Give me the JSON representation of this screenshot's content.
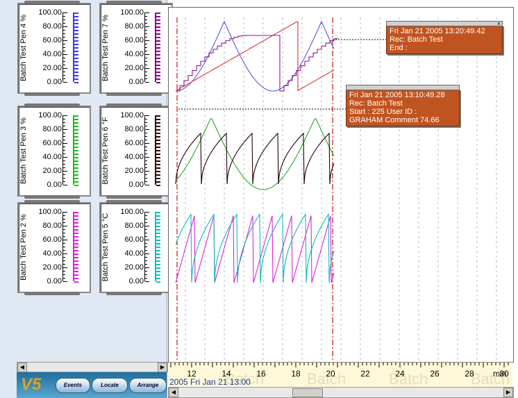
{
  "gauges": [
    {
      "label": "Batch Test Pen 4 %",
      "color": "#3a3af0",
      "ticks": [
        "100.00",
        "80.00",
        "60.00",
        "40.00",
        "20.00",
        "0.00"
      ]
    },
    {
      "label": "Batch Test Pen 7 %",
      "color": "#8b008b",
      "ticks": [
        "100.00",
        "80.00",
        "60.00",
        "40.00",
        "20.00",
        "0.00"
      ]
    },
    {
      "label": "Batch Test Pen 3 %",
      "color": "#22bb22",
      "ticks": [
        "100.00",
        "80.00",
        "60.00",
        "40.00",
        "20.00",
        "0.00"
      ]
    },
    {
      "label": "Batch Test Pen 6 °F",
      "color": "#2b0000",
      "ticks": [
        "100.00",
        "80.00",
        "60.00",
        "40.00",
        "20.00",
        "0.00"
      ]
    },
    {
      "label": "Batch Test Pen 2 %",
      "color": "#e020e0",
      "ticks": [
        "100.00",
        "80.00",
        "60.00",
        "40.00",
        "20.00",
        "0.00"
      ]
    },
    {
      "label": "Batch Test Pen 5 °C",
      "color": "#10c0c0",
      "ticks": [
        "100.00",
        "80.00",
        "60.00",
        "40.00",
        "20.00",
        "0.00"
      ]
    }
  ],
  "toolbar": {
    "events": "Events",
    "locate": "Locate",
    "arrange": "Arrange",
    "logo": "V5"
  },
  "annotations": {
    "a1": {
      "line1": "Fri Jan 21 2005 13:20:49.42",
      "line2": "Rec: Batch Test",
      "line3": "End :"
    },
    "a2": {
      "line1": "Fri Jan 21 2005 13:10:49.28",
      "line2": "Rec: Batch Test",
      "line3": "Start :  225 User ID :",
      "line4": "GRAHAM Comment 74.66"
    }
  },
  "timeaxis": {
    "ticks": [
      "12",
      "14",
      "16",
      "18",
      "20",
      "22",
      "24",
      "26",
      "28",
      "30"
    ],
    "unit": "min",
    "start_label": "2005 Fri Jan 21  13:00",
    "watermark": [
      "Batch",
      "Batch",
      "Batch",
      "Batch"
    ]
  },
  "colors": {
    "accent": "#c05420",
    "marker_line": "#cc2222"
  }
}
